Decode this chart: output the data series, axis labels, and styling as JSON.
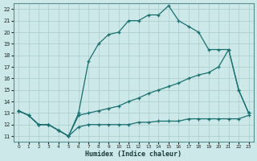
{
  "xlabel": "Humidex (Indice chaleur)",
  "xlim": [
    -0.5,
    23.5
  ],
  "ylim": [
    10.5,
    22.5
  ],
  "xticks": [
    0,
    1,
    2,
    3,
    4,
    5,
    6,
    7,
    8,
    9,
    10,
    11,
    12,
    13,
    14,
    15,
    16,
    17,
    18,
    19,
    20,
    21,
    22,
    23
  ],
  "yticks": [
    11,
    12,
    13,
    14,
    15,
    16,
    17,
    18,
    19,
    20,
    21,
    22
  ],
  "bg_color": "#cce8e8",
  "line_color": "#1a7070",
  "grid_color": "#aacccc",
  "series1_x": [
    0,
    1,
    2,
    3,
    4,
    5,
    6,
    7,
    8,
    9,
    10,
    11,
    12,
    13,
    14,
    15,
    16,
    17,
    18,
    19,
    20,
    21,
    22,
    23
  ],
  "series1_y": [
    13.2,
    12.8,
    12.0,
    12.0,
    11.5,
    11.0,
    13.0,
    17.5,
    19.0,
    19.8,
    20.0,
    21.0,
    21.0,
    21.5,
    21.5,
    22.3,
    21.0,
    20.5,
    20.0,
    18.5,
    18.5,
    18.5,
    15.0,
    13.0
  ],
  "series2_x": [
    0,
    1,
    2,
    3,
    4,
    5,
    6,
    7,
    8,
    9,
    10,
    11,
    12,
    13,
    14,
    15,
    16,
    17,
    18,
    19,
    20,
    21,
    22,
    23
  ],
  "series2_y": [
    13.2,
    12.8,
    12.0,
    12.0,
    11.5,
    11.0,
    12.8,
    13.0,
    13.2,
    13.4,
    13.6,
    14.0,
    14.3,
    14.7,
    15.0,
    15.3,
    15.6,
    16.0,
    16.3,
    16.5,
    17.0,
    18.5,
    15.0,
    13.0
  ],
  "series3_x": [
    0,
    1,
    2,
    3,
    4,
    5,
    6,
    7,
    8,
    9,
    10,
    11,
    12,
    13,
    14,
    15,
    16,
    17,
    18,
    19,
    20,
    21,
    22,
    23
  ],
  "series3_y": [
    13.2,
    12.8,
    12.0,
    12.0,
    11.5,
    11.0,
    11.8,
    12.0,
    12.0,
    12.0,
    12.0,
    12.0,
    12.2,
    12.2,
    12.3,
    12.3,
    12.3,
    12.5,
    12.5,
    12.5,
    12.5,
    12.5,
    12.5,
    12.8
  ]
}
